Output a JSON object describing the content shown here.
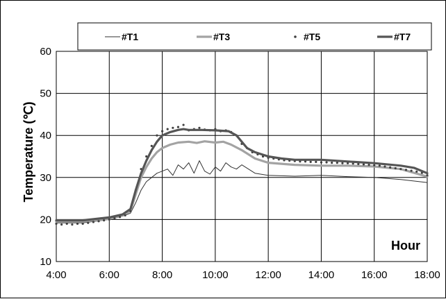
{
  "chart_data": {
    "type": "line",
    "title": "",
    "xlabel": "Hour",
    "ylabel": "Temperature (℃)",
    "xlim": [
      4,
      18
    ],
    "ylim": [
      10,
      60
    ],
    "x_ticks": [
      "4:00",
      "6:00",
      "8:00",
      "10:00",
      "12:00",
      "14:00",
      "16:00",
      "18:00"
    ],
    "y_ticks": [
      "10",
      "20",
      "30",
      "40",
      "50",
      "60"
    ],
    "grid": true,
    "legend_position": "top",
    "series": [
      {
        "name": "#T1",
        "style": "thin-line",
        "color": "#303030",
        "x": [
          4,
          5,
          6,
          6.5,
          6.8,
          7,
          7.2,
          7.4,
          7.6,
          7.8,
          8,
          8.2,
          8.4,
          8.6,
          8.8,
          9,
          9.2,
          9.4,
          9.6,
          9.8,
          10,
          10.2,
          10.4,
          10.6,
          10.8,
          11,
          11.5,
          12,
          13,
          14,
          15,
          16,
          17,
          18
        ],
        "y": [
          19.2,
          19.2,
          20,
          20.8,
          21.5,
          24,
          27,
          29,
          30,
          31,
          31.5,
          32,
          30.5,
          33,
          32,
          33.5,
          31,
          34,
          31.5,
          30.8,
          32.5,
          31.5,
          33.5,
          32.5,
          32,
          33,
          31,
          30.5,
          30.3,
          30.5,
          30.2,
          30,
          29.5,
          28.8
        ]
      },
      {
        "name": "#T3",
        "style": "thick-line",
        "color": "#a3a3a3",
        "x": [
          4,
          5,
          6,
          6.5,
          6.8,
          7,
          7.2,
          7.4,
          7.6,
          7.8,
          8,
          8.3,
          8.6,
          9,
          9.3,
          9.6,
          10,
          10.3,
          10.6,
          11,
          11.5,
          12,
          13,
          14,
          15,
          16,
          17,
          18
        ],
        "y": [
          19.5,
          19.5,
          20.2,
          21,
          22,
          26,
          30,
          32.5,
          34.5,
          36,
          37,
          37.8,
          38.3,
          38.5,
          38.2,
          38.6,
          38.3,
          38.5,
          37.8,
          36.5,
          34.5,
          33.5,
          33,
          32.8,
          32.8,
          32.6,
          32,
          30.2
        ]
      },
      {
        "name": "#T5",
        "style": "dots",
        "color": "#404040",
        "x": [
          4,
          4.2,
          4.4,
          4.6,
          4.8,
          5,
          5.2,
          5.4,
          5.6,
          5.8,
          6,
          6.2,
          6.4,
          6.6,
          6.8,
          7,
          7.2,
          7.4,
          7.6,
          7.8,
          8,
          8.2,
          8.4,
          8.6,
          8.8,
          9,
          9.2,
          9.4,
          9.6,
          9.8,
          10,
          10.2,
          10.4,
          10.6,
          10.8,
          11,
          11.2,
          11.4,
          11.6,
          11.8,
          12,
          12.2,
          12.4,
          12.6,
          12.8,
          13,
          13.2,
          13.4,
          13.6,
          13.8,
          14,
          14.2,
          14.4,
          14.6,
          14.8,
          15,
          15.2,
          15.4,
          15.6,
          15.8,
          16,
          16.2,
          16.4,
          16.6,
          16.8,
          17,
          17.2,
          17.4,
          17.6,
          17.8,
          18
        ],
        "y": [
          19,
          18.8,
          19,
          18.8,
          19,
          19,
          19.2,
          19.4,
          19.6,
          19.8,
          20,
          20.3,
          20.6,
          21,
          22,
          27,
          32,
          35,
          37.5,
          40,
          41,
          41.5,
          41.8,
          42,
          42.5,
          41.2,
          41.5,
          41.8,
          41.4,
          41.2,
          41.5,
          41,
          41.2,
          40.8,
          40,
          38,
          37,
          36,
          35.5,
          35,
          34.7,
          34.5,
          34.3,
          34.1,
          34,
          33.9,
          33.8,
          33.8,
          33.7,
          33.7,
          33.6,
          33.6,
          33.5,
          33.5,
          33.4,
          33.4,
          33.3,
          33.2,
          33.1,
          33,
          32.9,
          32.8,
          32.6,
          32.4,
          32.2,
          32,
          31.8,
          31.6,
          31.4,
          31.1,
          30.5
        ]
      },
      {
        "name": "#T7",
        "style": "thick-line",
        "color": "#555555",
        "x": [
          4,
          5,
          6,
          6.5,
          6.8,
          7,
          7.2,
          7.4,
          7.6,
          7.8,
          8,
          8.3,
          8.6,
          8.8,
          9,
          9.5,
          10,
          10.5,
          10.8,
          11,
          11.2,
          11.5,
          12,
          12.5,
          13,
          14,
          15,
          16,
          17,
          17.5,
          18
        ],
        "y": [
          19.8,
          19.8,
          20.5,
          21.2,
          22.5,
          27,
          31,
          34,
          36.5,
          38.5,
          40,
          40.8,
          41.3,
          41.5,
          41.3,
          41.3,
          41.2,
          41,
          40,
          38.5,
          37,
          36,
          35,
          34.5,
          34.2,
          34.2,
          33.8,
          33.4,
          32.8,
          32.3,
          31
        ]
      }
    ]
  }
}
